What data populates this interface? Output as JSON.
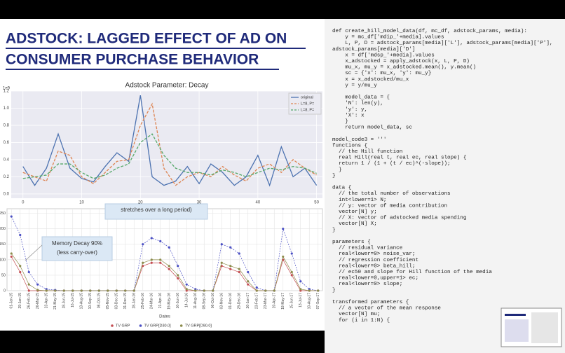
{
  "title_lines": [
    "ADSTOCK: LAGGED EFFECT OF AD ON",
    "CONSUMER PURCHASE BEHAVIOR"
  ],
  "code": {
    "blocks": [
      [
        "def create_hill_model_data(df, mc_df, adstock_params, media):",
        "    y = mc_df['mdip_'+media].values",
        "    L, P, D = adstock_params[media]['L'], adstock_params[media]['P'],",
        "adstock_params[media]['D']",
        "    x = df['mdsp_'+media].values",
        "    x_adstocked = apply_adstock(x, L, P, D)",
        "    mu_x, mu_y = x_adstocked.mean(), y.mean()",
        "    sc = {'x': mu_x, 'y': mu_y}",
        "    x = x_adstocked/mu_x",
        "    y = y/mu_y"
      ],
      [
        "    model_data = {",
        "    'N': len(y),",
        "    'y': y,",
        "    'X': x",
        "    }",
        "    return model_data, sc"
      ],
      [
        "model_code3 = '''",
        "functions {",
        "  // the Hill function",
        "  real Hill(real t, real ec, real slope) {",
        "  return 1 / (1 + (t / ec)^(-slope));",
        "  }",
        "}"
      ],
      [
        "data {",
        "  // the total number of observations",
        "  int<lower=1> N;",
        "  // y: vector of media contribution",
        "  vector[N] y;",
        "  // X: vector of adstocked media spending",
        "  vector[N] X;",
        "}"
      ],
      [
        "parameters {",
        "  // residual variance",
        "  real<lower=0> noise_var;",
        "  // regression coefficient",
        "  real<lower=0> beta_hill;",
        "  // ec50 and slope for Hill function of the media",
        "  real<lower=0,upper=1> ec;",
        "  real<lower=0> slope;",
        "}"
      ],
      [
        "transformed parameters {",
        "  // a vector of the mean response",
        "  vector[N] mu;",
        "  for (i in 1:N) {"
      ]
    ]
  },
  "chart_data": [
    {
      "type": "line",
      "title": "Adstock Parameter: Decay",
      "y_offset_label": "1e9",
      "x": [
        0,
        2,
        4,
        6,
        8,
        10,
        12,
        14,
        16,
        18,
        20,
        22,
        24,
        26,
        28,
        30,
        32,
        34,
        36,
        38,
        40,
        42,
        44,
        46,
        48,
        50
      ],
      "xlim": [
        -2,
        51
      ],
      "xticks": [
        0,
        10,
        20,
        30,
        40,
        50
      ],
      "ylim": [
        -0.05,
        1.2
      ],
      "yticks": [
        {
          "value": 0,
          "label": "0.0"
        },
        {
          "value": 0.2,
          "label": "0.2"
        },
        {
          "value": 0.4,
          "label": "0.4"
        },
        {
          "value": 0.6,
          "label": "0.6"
        },
        {
          "value": 0.8,
          "label": "0.8"
        },
        {
          "value": 1,
          "label": "1.0"
        },
        {
          "value": 1.2,
          "label": "1.2"
        }
      ],
      "grid": true,
      "legend": "upper right",
      "series": [
        {
          "name": "original",
          "color": "#4c72b0",
          "linestyle": "solid",
          "values": [
            0.32,
            0.1,
            0.3,
            0.7,
            0.3,
            0.18,
            0.14,
            0.32,
            0.48,
            0.38,
            1.15,
            0.2,
            0.1,
            0.15,
            0.32,
            0.12,
            0.35,
            0.25,
            0.1,
            0.2,
            0.45,
            0.1,
            0.55,
            0.2,
            0.3,
            0.1
          ]
        },
        {
          "name": "L=8, P=",
          "color": "#dd8452",
          "linestyle": "dashed",
          "values": [
            0.25,
            0.2,
            0.15,
            0.5,
            0.45,
            0.2,
            0.12,
            0.25,
            0.38,
            0.4,
            0.8,
            1.05,
            0.3,
            0.1,
            0.2,
            0.25,
            0.2,
            0.32,
            0.22,
            0.15,
            0.3,
            0.35,
            0.25,
            0.4,
            0.3,
            0.22
          ]
        },
        {
          "name": "L=8, P=",
          "color": "#55a868",
          "linestyle": "dashed",
          "values": [
            0.18,
            0.2,
            0.22,
            0.35,
            0.35,
            0.25,
            0.18,
            0.22,
            0.3,
            0.35,
            0.6,
            0.7,
            0.45,
            0.3,
            0.25,
            0.25,
            0.22,
            0.28,
            0.25,
            0.2,
            0.25,
            0.3,
            0.28,
            0.32,
            0.3,
            0.24
          ]
        }
      ]
    },
    {
      "type": "line",
      "x_label": "Dates",
      "annotations": [
        "stretches over a long period)",
        "Memory Decay 90%",
        "(less carry-over)"
      ],
      "categories": [
        "01-Jan-15",
        "29-Jan-15",
        "26-Feb-15",
        "26-Mar-15",
        "23-Apr-15",
        "21-May-15",
        "18-Jun-15",
        "16-Jul-15",
        "13-Aug-15",
        "10-Sep-15",
        "08-Oct-15",
        "05-Nov-15",
        "03-Dec-15",
        "31-Dec-15",
        "28-Jan-16",
        "25-Feb-16",
        "24-Mar-16",
        "21-Apr-16",
        "19-May-16",
        "16-Jun-16",
        "14-Jul-16",
        "11-Aug-16",
        "08-Sep-16",
        "06-Oct-16",
        "03-Nov-16",
        "01-Dec-16",
        "29-Dec-16",
        "26-Jan-17",
        "23-Feb-17",
        "23-Mar-17",
        "20-Apr-17",
        "18-May-17",
        "15-Jun-17",
        "13-Jul-17",
        "10-Aug-17",
        "07-Sep-17"
      ],
      "ylim": [
        0,
        265
      ],
      "yticks": [
        0,
        50,
        100,
        150,
        200,
        250
      ],
      "grid": true,
      "legend": "lower center",
      "series": [
        {
          "name": "TV GRP",
          "color": "#c44e52",
          "values": [
            110,
            60,
            0,
            0,
            0,
            0,
            0,
            0,
            0,
            0,
            0,
            0,
            0,
            0,
            0,
            80,
            90,
            90,
            70,
            40,
            0,
            0,
            0,
            0,
            80,
            70,
            60,
            20,
            0,
            0,
            0,
            100,
            50,
            0,
            0,
            0
          ]
        },
        {
          "name": "TV GRP[D30.0]",
          "color": "#4a4fc4",
          "values": [
            240,
            180,
            60,
            20,
            5,
            2,
            0,
            0,
            0,
            0,
            0,
            0,
            0,
            0,
            0,
            150,
            170,
            160,
            140,
            80,
            20,
            5,
            0,
            0,
            150,
            140,
            120,
            60,
            10,
            0,
            0,
            200,
            120,
            30,
            5,
            0
          ]
        },
        {
          "name": "TV GRP[D90.0]",
          "color": "#8c8c4c",
          "values": [
            120,
            80,
            20,
            2,
            0,
            0,
            0,
            0,
            0,
            0,
            0,
            0,
            0,
            0,
            0,
            90,
            100,
            100,
            80,
            50,
            5,
            0,
            0,
            0,
            90,
            80,
            70,
            30,
            0,
            0,
            0,
            110,
            60,
            5,
            0,
            0
          ]
        }
      ]
    }
  ]
}
